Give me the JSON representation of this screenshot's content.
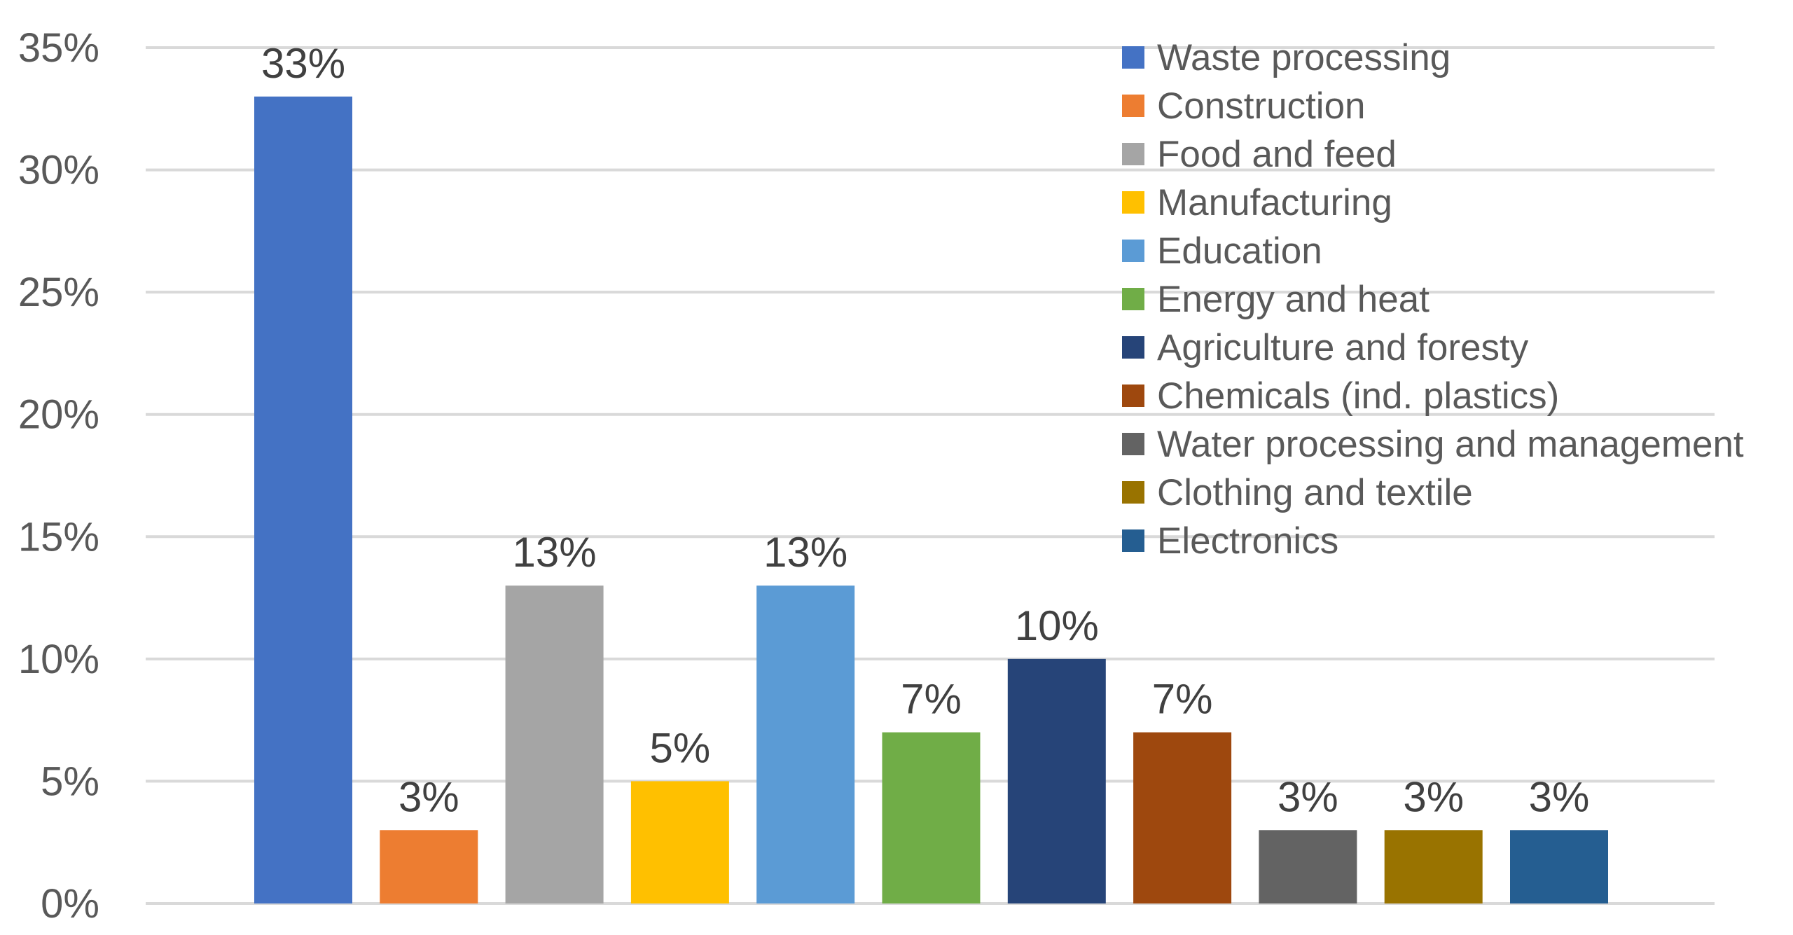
{
  "chart_data": {
    "type": "bar",
    "title": "",
    "xlabel": "",
    "ylabel": "",
    "ylim": [
      0,
      35
    ],
    "y_ticks": [
      0,
      5,
      10,
      15,
      20,
      25,
      30,
      35
    ],
    "y_tick_format": "percent",
    "grid": true,
    "legend_position": "top-right",
    "categories": [
      "Waste processing",
      "Construction",
      "Food and feed",
      "Manufacturing",
      "Education",
      "Energy and heat",
      "Agriculture and foresty",
      "Chemicals (ind. plastics)",
      "Water processing and management",
      "Clothing and textile",
      "Electronics"
    ],
    "values": [
      33,
      3,
      13,
      5,
      13,
      7,
      10,
      7,
      3,
      3,
      3
    ],
    "data_labels": [
      "33%",
      "3%",
      "13%",
      "5%",
      "13%",
      "7%",
      "10%",
      "7%",
      "3%",
      "3%",
      "3%"
    ],
    "colors": [
      "#4472c4",
      "#ed7d31",
      "#a5a5a5",
      "#ffc000",
      "#5b9bd5",
      "#70ad47",
      "#264478",
      "#9e480e",
      "#636363",
      "#997300",
      "#255e91"
    ]
  }
}
